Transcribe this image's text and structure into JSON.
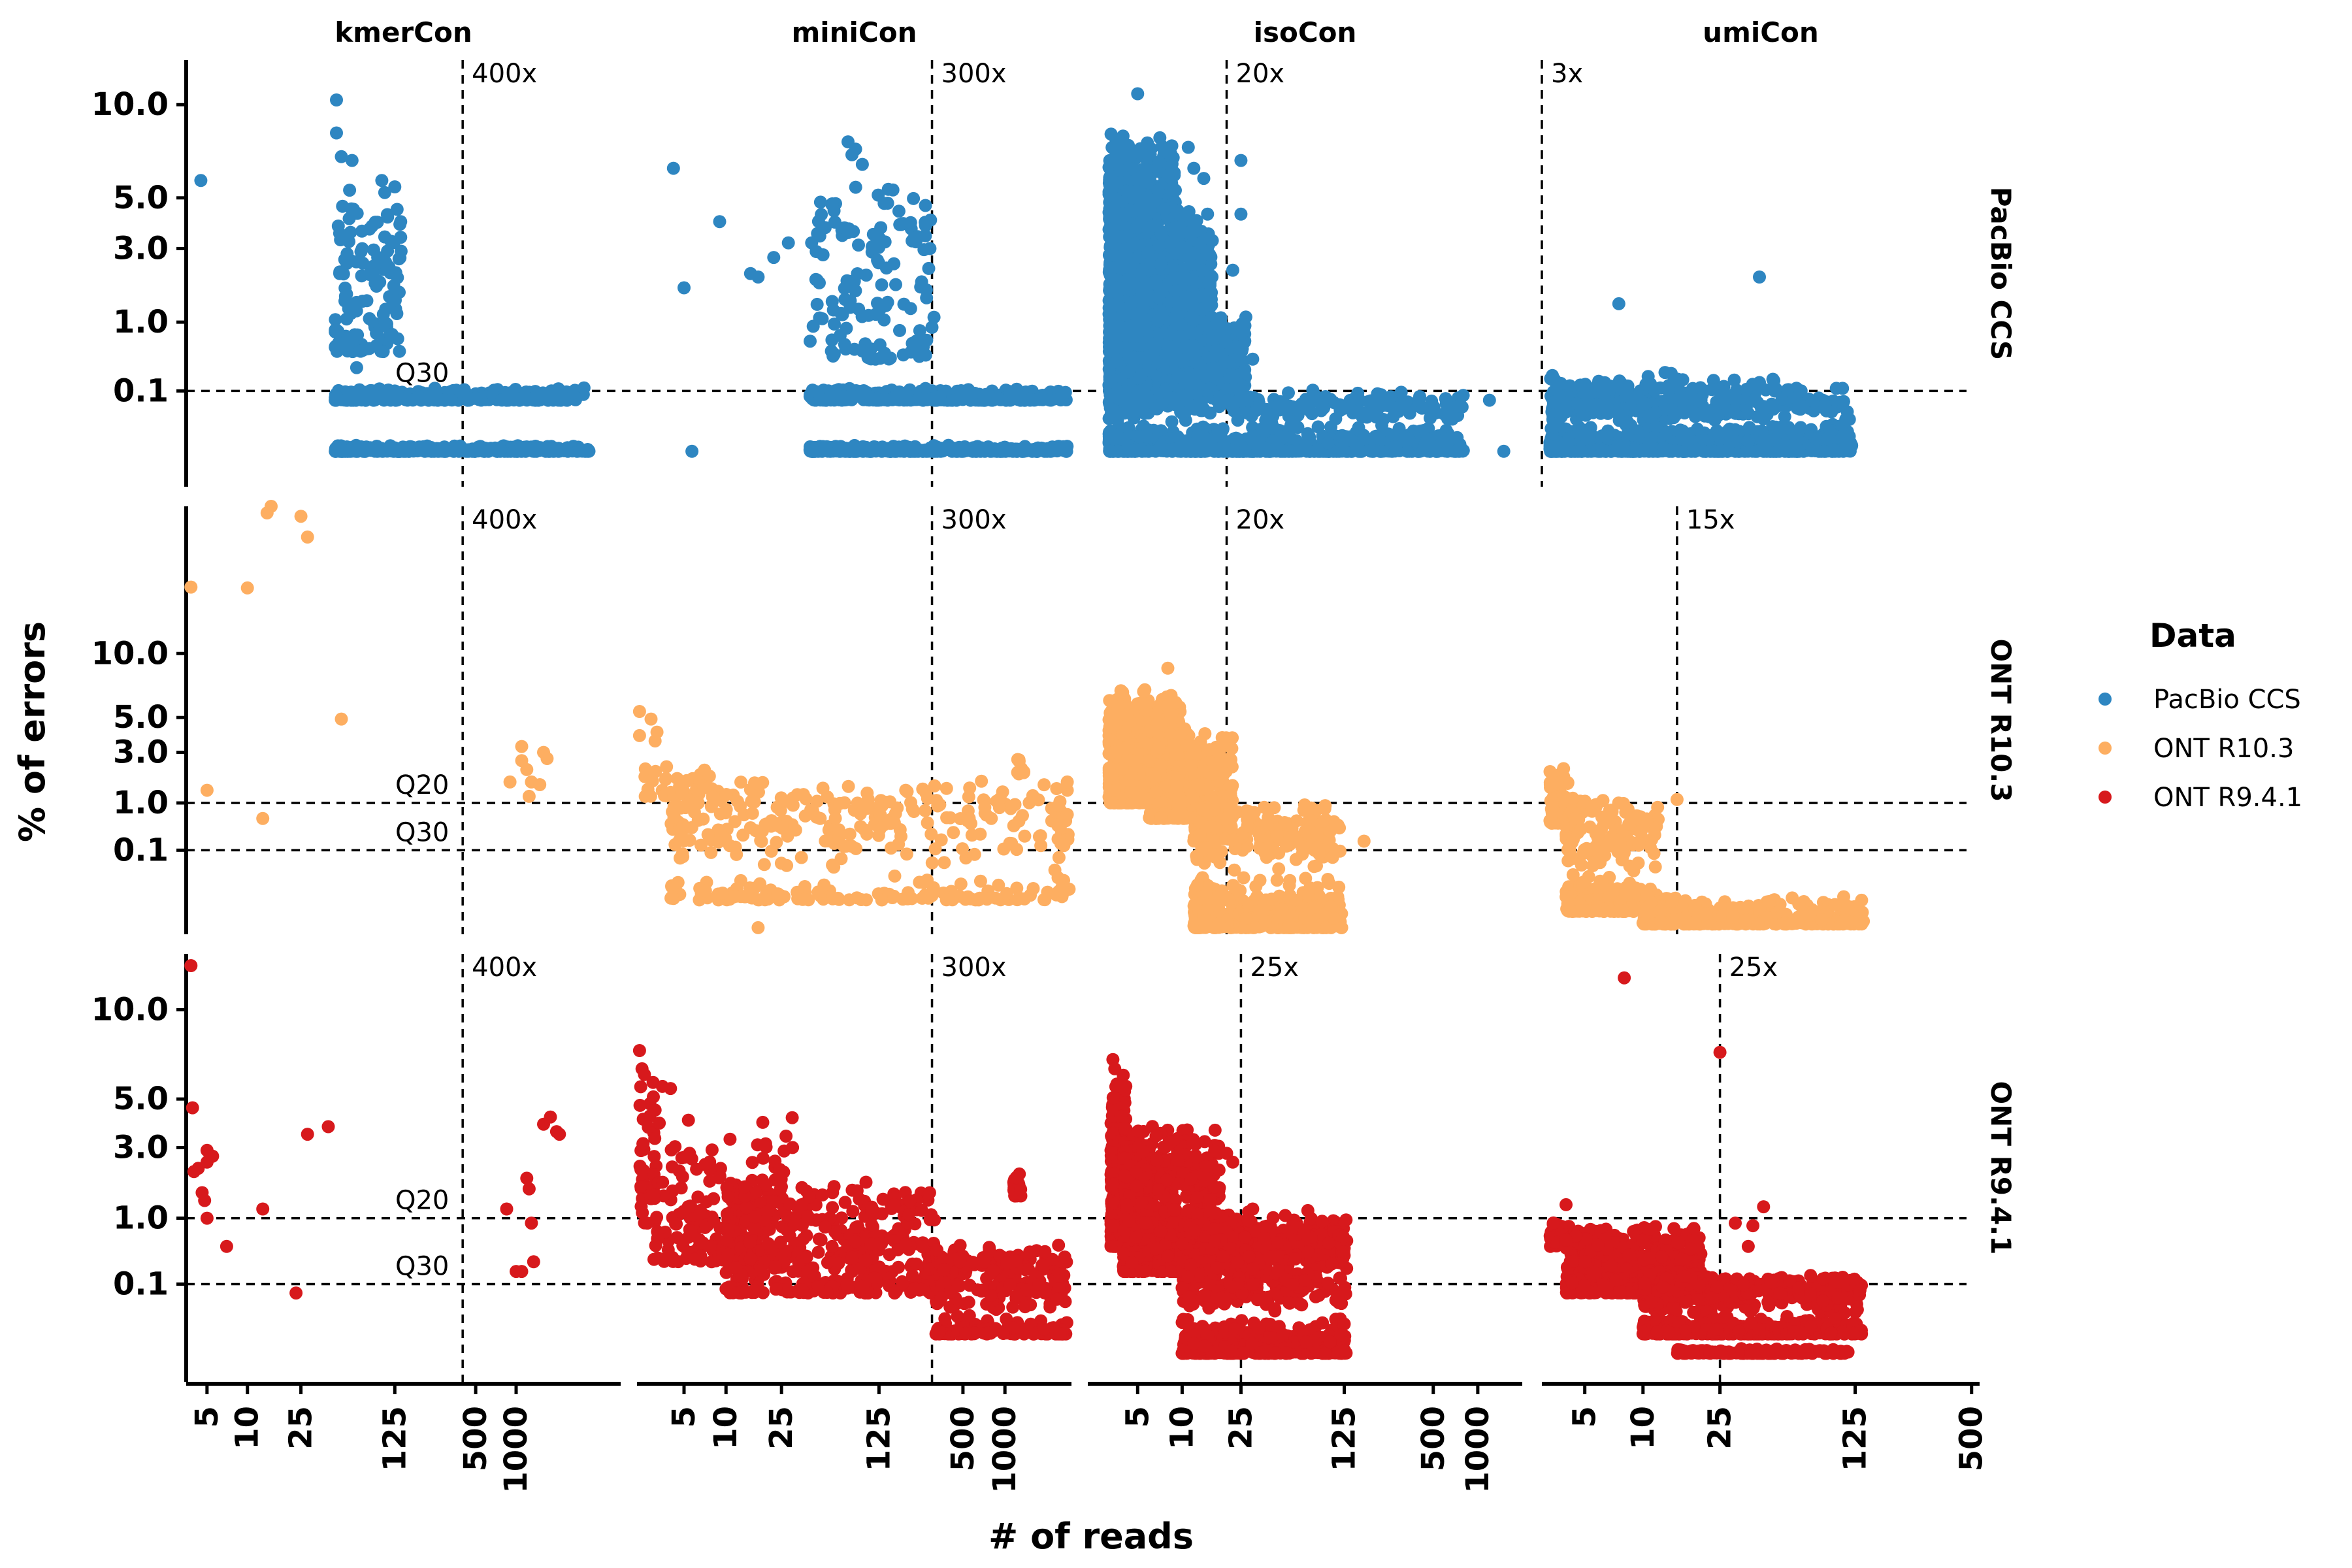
{
  "chart_data": {
    "type": "scatter",
    "xlabel": "# of reads",
    "ylabel": "% of errors",
    "x_scale": "log",
    "legend": {
      "title": "Data",
      "placement": "right",
      "entries": [
        {
          "name": "PacBio CCS",
          "color": "#2e86c1"
        },
        {
          "name": "ONT R10.3",
          "color": "#fdae61"
        },
        {
          "name": "ONT R9.4.1",
          "color": "#d7191c"
        }
      ]
    },
    "columns": [
      {
        "name": "kmerCon",
        "xlim": [
          3.5,
          6000
        ],
        "xticks": [
          5,
          10,
          25,
          125,
          500,
          1000
        ]
      },
      {
        "name": "miniCon",
        "xlim": [
          2.3,
          3000
        ],
        "xticks": [
          5,
          10,
          25,
          125,
          500,
          1000
        ]
      },
      {
        "name": "isoCon",
        "xlim": [
          2.3,
          2000
        ],
        "xticks": [
          5,
          10,
          25,
          125,
          500,
          1000
        ]
      },
      {
        "name": "umiCon",
        "xlim": [
          3,
          550
        ],
        "xticks": [
          5,
          10,
          25,
          125,
          500
        ]
      }
    ],
    "rows": [
      {
        "name": "PacBio CCS",
        "color": "#2e86c1",
        "yticks": [
          "10.0",
          "5.0",
          "3.0",
          "1.0",
          "0.1"
        ],
        "y_positions": [
          10,
          5,
          3,
          1,
          0.1
        ],
        "ylim_top": 13,
        "ylim_bottom": -0.5,
        "hlines": [
          {
            "y": 0.1,
            "label": "Q30"
          }
        ],
        "vlines": [
          {
            "x": 400,
            "label": "400x"
          },
          {
            "x": 300,
            "label": "300x"
          },
          {
            "x": 20,
            "label": "20x"
          },
          {
            "x": 3,
            "label": "3x"
          }
        ]
      },
      {
        "name": "ONT R10.3",
        "color": "#fdae61",
        "yticks": [
          "10.0",
          "5.0",
          "3.0",
          "1.0",
          "0.1"
        ],
        "y_positions": [
          10,
          5,
          3,
          1,
          0.1
        ],
        "ylim_top": 28,
        "ylim_bottom": -1,
        "hlines": [
          {
            "y": 1,
            "label": "Q20"
          },
          {
            "y": 0.1,
            "label": "Q30"
          }
        ],
        "vlines": [
          {
            "x": 400,
            "label": "400x"
          },
          {
            "x": 300,
            "label": "300x"
          },
          {
            "x": 20,
            "label": "20x"
          },
          {
            "x": 15,
            "label": "15x"
          }
        ]
      },
      {
        "name": "ONT R9.4.1",
        "color": "#d7191c",
        "yticks": [
          "10.0",
          "5.0",
          "3.0",
          "1.0",
          "0.1"
        ],
        "y_positions": [
          10,
          5,
          3,
          1,
          0.1
        ],
        "ylim_top": 14,
        "ylim_bottom": -0.6,
        "hlines": [
          {
            "y": 1,
            "label": "Q20"
          },
          {
            "y": 0.1,
            "label": "Q30"
          }
        ],
        "vlines": [
          {
            "x": 400,
            "label": "400x"
          },
          {
            "x": 300,
            "label": "300x"
          },
          {
            "x": 25,
            "label": "25x"
          },
          {
            "x": 25,
            "label": "25x"
          }
        ]
      }
    ],
    "clusters": [
      {
        "row": 0,
        "col": 0,
        "points": [
          [
            4.5,
            5.8
          ],
          [
            125,
            0.1
          ],
          [
            400,
            0.1
          ]
        ],
        "groups": [
          {
            "xr": [
              45,
              140
            ],
            "yr": [
              0.5,
              6.5
            ],
            "n": 130
          },
          {
            "xr": [
              45,
              3200
            ],
            "yr": [
              0.05,
              0.12
            ],
            "n": 320
          },
          {
            "xr": [
              45,
              3500
            ],
            "yr": [
              -0.1,
              -0.06
            ],
            "n": 360
          }
        ],
        "extra": [
          [
            46,
            10.3
          ],
          [
            46,
            8.3
          ],
          [
            50,
            7
          ],
          [
            60,
            6.8
          ],
          [
            100,
            5.8
          ],
          [
            125,
            5.5
          ],
          [
            130,
            4.5
          ],
          [
            65,
            0.3
          ],
          [
            3200,
            0.12
          ]
        ]
      },
      {
        "row": 0,
        "col": 1,
        "points": [
          [
            4.2,
            6.4
          ],
          [
            5,
            1.8
          ],
          [
            5.7,
            -0.1
          ],
          [
            9,
            4
          ]
        ],
        "groups": [
          {
            "xr": [
              40,
              300
            ],
            "yr": [
              0.4,
              6
            ],
            "n": 130
          },
          {
            "xr": [
              40,
              2800
            ],
            "yr": [
              0.05,
              0.12
            ],
            "n": 340
          },
          {
            "xr": [
              40,
              2800
            ],
            "yr": [
              -0.1,
              -0.06
            ],
            "n": 380
          }
        ],
        "extra": [
          [
            15,
            2.2
          ],
          [
            17,
            2.1
          ],
          [
            22,
            2.7
          ],
          [
            28,
            3.2
          ],
          [
            75,
            7.8
          ],
          [
            80,
            7.1
          ],
          [
            85,
            7.4
          ],
          [
            95,
            6.6
          ],
          [
            300,
            0.9
          ],
          [
            310,
            1.1
          ],
          [
            290,
            3
          ]
        ]
      },
      {
        "row": 0,
        "col": 2,
        "points": [
          [
            5,
            10.7
          ],
          [
            25,
            4.3
          ],
          [
            25,
            6.8
          ],
          [
            1200,
            0.05
          ],
          [
            1500,
            -0.1
          ]
        ],
        "groups": [
          {
            "xr": [
              3.2,
              9
            ],
            "yr": [
              0.1,
              8.6
            ],
            "n": 1400
          },
          {
            "xr": [
              9,
              16
            ],
            "yr": [
              0.1,
              4.8
            ],
            "n": 500
          },
          {
            "xr": [
              16,
              27
            ],
            "yr": [
              0.1,
              1.2
            ],
            "n": 180
          },
          {
            "xr": [
              3.2,
              800
            ],
            "yr": [
              -0.1,
              0.11
            ],
            "n": 1100
          }
        ],
        "extra": [
          [
            12,
            6.4
          ],
          [
            14,
            5.9
          ],
          [
            11,
            7.5
          ],
          [
            22,
            2.3
          ],
          [
            30,
            0.4
          ]
        ]
      },
      {
        "row": 0,
        "col": 3,
        "points": [
          [
            7.5,
            1.4
          ],
          [
            40,
            2.1
          ]
        ],
        "groups": [
          {
            "xr": [
              3.3,
              120
            ],
            "yr": [
              -0.1,
              0.12
            ],
            "n": 1300
          },
          {
            "xr": [
              3.3,
              60
            ],
            "yr": [
              0.1,
              0.22
            ],
            "n": 60
          }
        ],
        "extra": [
          [
            3.4,
            0.22
          ],
          [
            3.5,
            0.18
          ],
          [
            13,
            0.25
          ],
          [
            14,
            0.24
          ],
          [
            40,
            0.16
          ]
        ]
      },
      {
        "row": 1,
        "col": 0,
        "points": [
          [
            3.8,
            17
          ],
          [
            5,
            1.4
          ],
          [
            10,
            16.9
          ],
          [
            13,
            0.6
          ],
          [
            14,
            27
          ],
          [
            15,
            28
          ],
          [
            25,
            26.5
          ],
          [
            28,
            23.5
          ],
          [
            50,
            4.9
          ],
          [
            900,
            1.7
          ],
          [
            1100,
            3.3
          ],
          [
            1200,
            2.2
          ],
          [
            1250,
            1.2
          ],
          [
            1300,
            1.7
          ],
          [
            1500,
            1.6
          ],
          [
            1600,
            3
          ],
          [
            1700,
            2.7
          ],
          [
            1100,
            2.6
          ]
        ]
      },
      {
        "row": 1,
        "col": 1,
        "points": [
          [
            2.4,
            5.4
          ],
          [
            2.9,
            4.9
          ],
          [
            3.2,
            4.1
          ],
          [
            2.4,
            3.9
          ],
          [
            3.1,
            3.6
          ],
          [
            17,
            -0.8
          ],
          [
            2800,
            1.4
          ],
          [
            2800,
            1.7
          ]
        ],
        "groups": [
          {
            "xr": [
              2.6,
              8
            ],
            "yr": [
              1.2,
              2.6
            ],
            "n": 35
          },
          {
            "xr": [
              4,
              2800
            ],
            "yr": [
              -0.2,
              1.9
            ],
            "n": 380
          },
          {
            "xr": [
              1200,
              1400
            ],
            "yr": [
              2,
              2.8
            ],
            "n": 8
          },
          {
            "xr": [
              2400,
              2900
            ],
            "yr": [
              -0.1,
              1
            ],
            "n": 18
          }
        ]
      },
      {
        "row": 1,
        "col": 2,
        "points": [
          [
            8,
            8.7
          ],
          [
            170,
            0.2
          ],
          [
            120,
            -0.8
          ]
        ],
        "groups": [
          {
            "xr": [
              3.2,
              10
            ],
            "yr": [
              1,
              7.5
            ],
            "n": 650
          },
          {
            "xr": [
              6,
              22
            ],
            "yr": [
              0.6,
              4.5
            ],
            "n": 400
          },
          {
            "xr": [
              12,
              120
            ],
            "yr": [
              -0.8,
              1.1
            ],
            "n": 650
          }
        ]
      },
      {
        "row": 1,
        "col": 3,
        "points": [
          [
            15,
            1.1
          ]
        ],
        "groups": [
          {
            "xr": [
              3.3,
              4.2
            ],
            "yr": [
              0.5,
              2.3
            ],
            "n": 120
          },
          {
            "xr": [
              4,
              12
            ],
            "yr": [
              -0.4,
              1.2
            ],
            "n": 350
          },
          {
            "xr": [
              10,
              140
            ],
            "yr": [
              -0.7,
              -0.1
            ],
            "n": 450
          }
        ]
      },
      {
        "row": 2,
        "col": 0,
        "points": [
          [
            3.8,
            13.1
          ],
          [
            3.9,
            4.6
          ],
          [
            4,
            2.2
          ],
          [
            4.3,
            2.3
          ],
          [
            4.6,
            1.6
          ],
          [
            4.8,
            1.4
          ],
          [
            5,
            2.9
          ],
          [
            5,
            2.5
          ],
          [
            5,
            1
          ],
          [
            5.5,
            2.7
          ],
          [
            7,
            0.5
          ],
          [
            13,
            1.2
          ],
          [
            23,
            0.05
          ],
          [
            28,
            3.5
          ],
          [
            40,
            3.8
          ],
          [
            850,
            1.2
          ],
          [
            1000,
            0.2
          ],
          [
            1200,
            2
          ],
          [
            1250,
            1.7
          ],
          [
            1300,
            0.9
          ],
          [
            1350,
            0.3
          ],
          [
            1100,
            0.2
          ],
          [
            1600,
            3.9
          ],
          [
            1800,
            4.2
          ],
          [
            2000,
            3.6
          ],
          [
            2100,
            3.5
          ]
        ]
      },
      {
        "row": 2,
        "col": 1,
        "points": [
          [
            2.4,
            7.5
          ],
          [
            2.5,
            6.5
          ],
          [
            2.6,
            6.2
          ],
          [
            3,
            5.8
          ],
          [
            3.5,
            5.6
          ],
          [
            4,
            5.5
          ],
          [
            3.1,
            4.5
          ]
        ],
        "groups": [
          {
            "xr": [
              2.4,
              3.2
            ],
            "yr": [
              0.9,
              6.8
            ],
            "n": 40
          },
          {
            "xr": [
              3,
              30
            ],
            "yr": [
              0.3,
              4.4
            ],
            "n": 160
          },
          {
            "xr": [
              10,
              320
            ],
            "yr": [
              0.05,
              2
            ],
            "n": 420
          },
          {
            "xr": [
              320,
              2800
            ],
            "yr": [
              -0.05,
              0.55
            ],
            "n": 320
          },
          {
            "xr": [
              1150,
              1300
            ],
            "yr": [
              1.5,
              2.3
            ],
            "n": 28
          }
        ]
      },
      {
        "row": 2,
        "col": 2,
        "points": [
          [
            3.4,
            7
          ],
          [
            3.5,
            6.5
          ]
        ],
        "groups": [
          {
            "xr": [
              3.3,
              4.2
            ],
            "yr": [
              0.5,
              6.2
            ],
            "n": 400
          },
          {
            "xr": [
              4,
              18
            ],
            "yr": [
              0.2,
              4
            ],
            "n": 700
          },
          {
            "xr": [
              10,
              130
            ],
            "yr": [
              -0.2,
              1.2
            ],
            "n": 900
          }
        ],
        "extra": [
          [
            20,
            2.8
          ],
          [
            22,
            2.5
          ],
          [
            30,
            1.2
          ],
          [
            28,
            0.95
          ]
        ]
      },
      {
        "row": 2,
        "col": 3,
        "points": [
          [
            8,
            12.2
          ],
          [
            25,
            7.4
          ],
          [
            4,
            1.3
          ],
          [
            4,
            0.6
          ],
          [
            42,
            1.25
          ],
          [
            35,
            0.5
          ],
          [
            30,
            0.9
          ],
          [
            37,
            0.85
          ]
        ],
        "groups": [
          {
            "xr": [
              3.3,
              4.2
            ],
            "yr": [
              0.5,
              1.1
            ],
            "n": 30
          },
          {
            "xr": [
              4,
              20
            ],
            "yr": [
              0.05,
              0.9
            ],
            "n": 520
          },
          {
            "xr": [
              10,
              135
            ],
            "yr": [
              -0.05,
              0.18
            ],
            "n": 650
          },
          {
            "xr": [
              15,
              120
            ],
            "yr": [
              -0.2,
              -0.15
            ],
            "n": 150
          }
        ]
      }
    ]
  }
}
